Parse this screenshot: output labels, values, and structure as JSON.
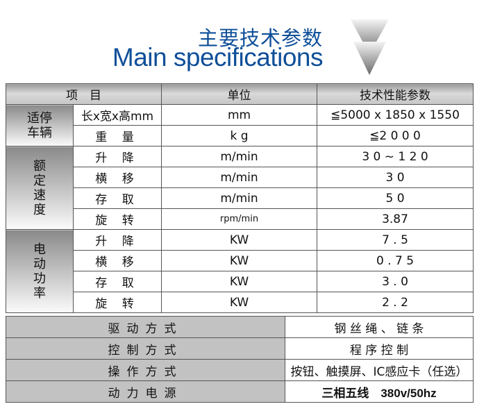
{
  "header": {
    "title_cn": "主要技术参数",
    "title_en": "Main specifications",
    "arrow_icon": "chevron-down-icon"
  },
  "table": {
    "columns": [
      "项　目",
      "单位",
      "技术性能参数"
    ],
    "groups": [
      {
        "label": "适停\n车辆",
        "rows": [
          [
            "长x宽x高mm",
            "mm",
            "≦5000 x 1850 x 1550"
          ],
          [
            "重 量",
            "k g",
            "≦2 0 0 0"
          ]
        ]
      },
      {
        "label": "额\n定\n速\n度",
        "rows": [
          [
            "升 降",
            "m/min",
            "3 0 ~ 1 2 0"
          ],
          [
            "横 移",
            "m/min",
            "3 0"
          ],
          [
            "存 取",
            "m/min",
            "5 0"
          ],
          [
            "旋 转",
            "rpm/min",
            "3.87"
          ]
        ]
      },
      {
        "label": "电\n动\n功\n率",
        "rows": [
          [
            "升 降",
            "KW",
            "7 . 5"
          ],
          [
            "横 移",
            "KW",
            "0 . 7 5"
          ],
          [
            "存 取",
            "KW",
            "3 . 0"
          ],
          [
            "旋 转",
            "KW",
            "2 . 2"
          ]
        ]
      }
    ],
    "bottom_rows": [
      [
        "驱动方式",
        "钢 丝 绳 、 链 条"
      ],
      [
        "控制方式",
        "程 序 控 制"
      ],
      [
        "操作方式",
        "按钮、触摸屏、IC感应卡（任选）"
      ],
      [
        "动力电源",
        "三相五线　380v/50hz"
      ]
    ]
  }
}
